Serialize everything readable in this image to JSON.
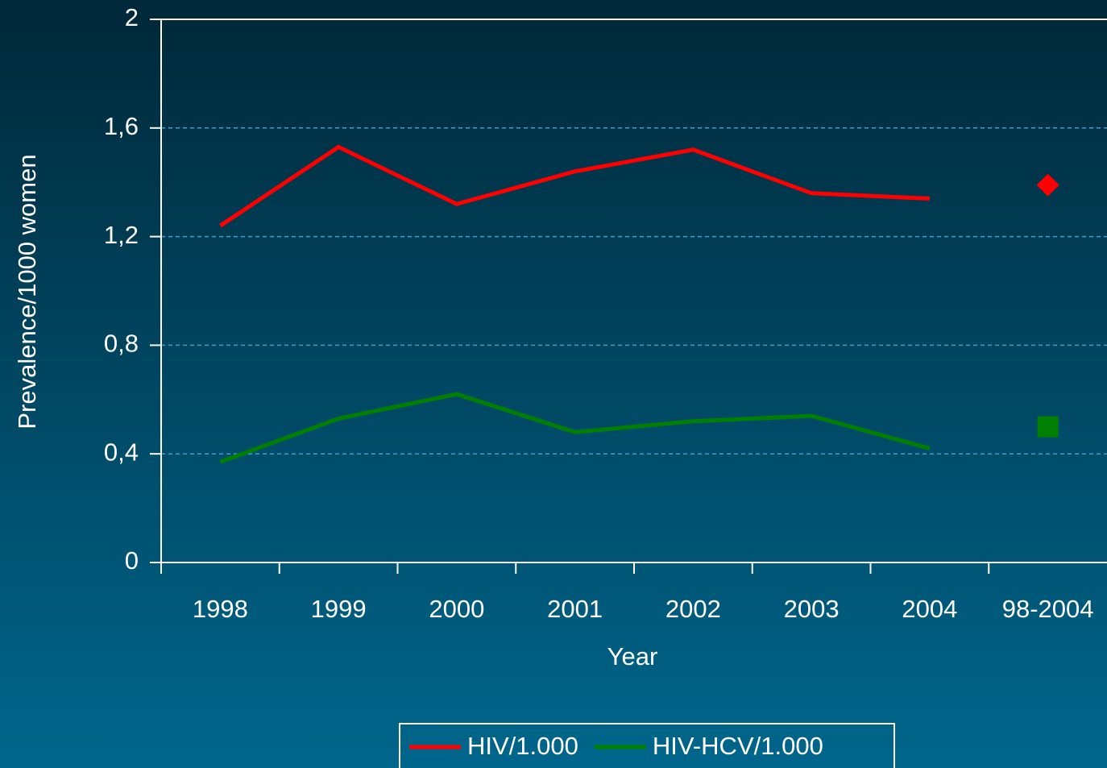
{
  "chart_data": {
    "type": "line",
    "x_label": "Year",
    "y_label": "Prevalence/1000 women",
    "categories": [
      "1998",
      "1999",
      "2000",
      "2001",
      "2002",
      "2003",
      "2004",
      "98-2004"
    ],
    "series": [
      {
        "name": "HIV/1.000",
        "color": "#ff0000",
        "values": [
          1.24,
          1.53,
          1.32,
          1.44,
          1.52,
          1.36,
          1.34,
          null
        ],
        "summary": 1.39,
        "marker": "diamond"
      },
      {
        "name": "HIV-HCV/1.000",
        "color": "#008000",
        "values": [
          0.37,
          0.53,
          0.62,
          0.48,
          0.52,
          0.54,
          0.42,
          null
        ],
        "summary": 0.5,
        "marker": "square"
      }
    ],
    "ylim": [
      0,
      2
    ],
    "yticks": [
      0,
      {
        "value": 0.4,
        "label": "0,4"
      },
      {
        "value": 0.8,
        "label": "0,8"
      },
      {
        "value": 1.2,
        "label": "1,2"
      },
      {
        "value": 1.6,
        "label": "1,6"
      },
      2
    ],
    "grid": true,
    "legend": "bottom"
  }
}
